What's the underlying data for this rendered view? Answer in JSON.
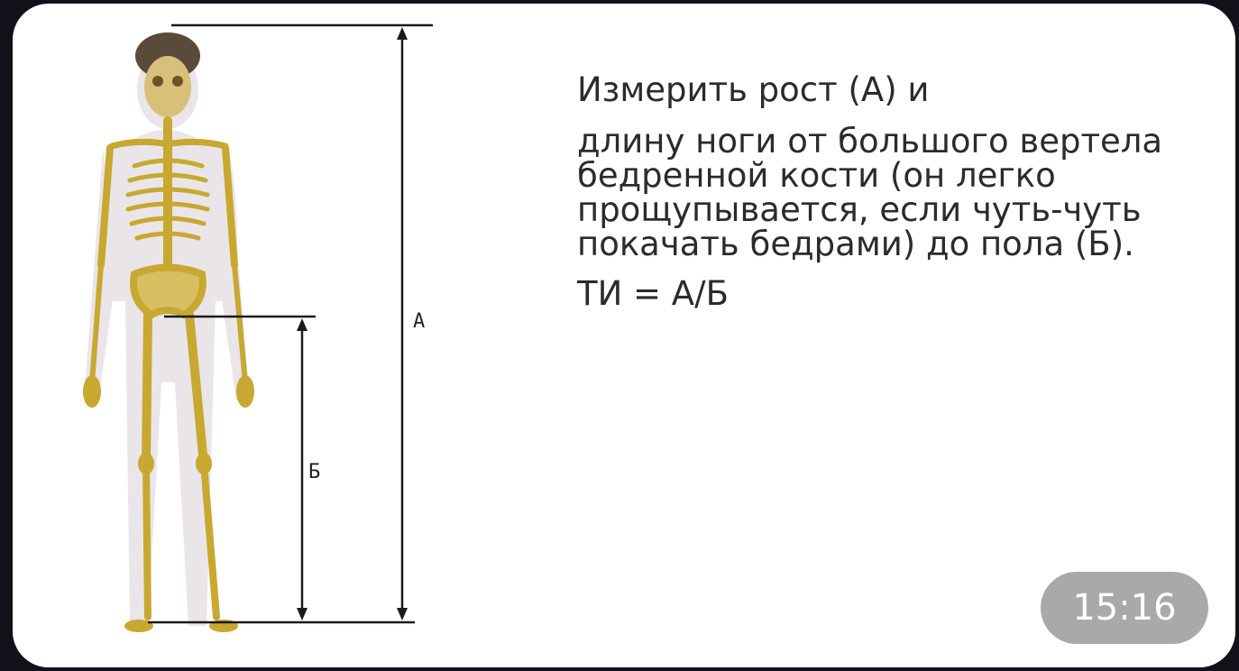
{
  "message": {
    "line1": "Измерить рост (А) и",
    "paragraph": "длину ноги от большого вертела бедренной кости (он легко прощупывается, если чуть-чуть покачать бедрами) до пола (Б).",
    "formula": "ТИ = А/Б",
    "time": "15:16"
  },
  "figure": {
    "label_a": "А",
    "label_b": "Б",
    "bone_color": "#c8a830",
    "bone_dark": "#9c7e1c"
  }
}
